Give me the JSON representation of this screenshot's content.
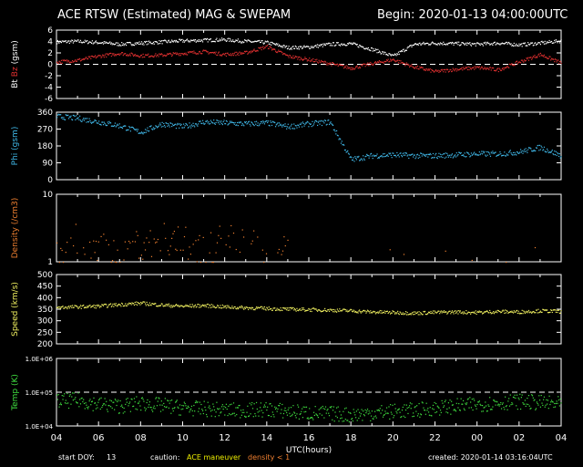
{
  "header": {
    "title": "ACE RTSW (Estimated) MAG & SWEPAM",
    "begin": "Begin: 2020-01-13 04:00:00UTC"
  },
  "footer": {
    "start_doy_label": "start DOY:",
    "start_doy": "13",
    "caution_label": "caution:",
    "caution_maneuver": "ACE maneuver",
    "caution_density": "density < 1",
    "created": "created: 2020-01-14 03:16:04UTC"
  },
  "colors": {
    "bt": "#ffffff",
    "bz": "#e03030",
    "phi": "#40b8e8",
    "density": "#f08030",
    "speed": "#f0f060",
    "temp": "#40e040",
    "maneuver": "#f0f000",
    "density_low": "#f08030",
    "axes": "#ffffff"
  },
  "chart_data": [
    {
      "type": "scatter",
      "panel": "mag",
      "ylabel_parts": [
        "Bt",
        "Bz",
        "(gsm)"
      ],
      "ylim": [
        -6,
        6
      ],
      "yticks": [
        -6,
        -4,
        -2,
        0,
        2,
        4,
        6
      ],
      "ytick_labels": [
        "-6",
        "-4",
        "-2",
        "0",
        "2",
        "4",
        "6"
      ],
      "dashed_ref": 0,
      "series": [
        {
          "name": "Bt",
          "x": [
            0,
            1,
            2,
            3,
            4,
            5,
            6,
            7,
            8,
            9,
            10,
            11,
            12,
            13,
            14,
            15,
            16,
            17,
            18,
            19,
            20,
            21,
            22,
            23,
            24
          ],
          "y": [
            4.0,
            4.1,
            3.9,
            3.6,
            3.8,
            4.0,
            4.2,
            4.3,
            4.4,
            4.1,
            3.9,
            3.0,
            3.1,
            3.6,
            3.7,
            2.7,
            1.5,
            3.6,
            3.8,
            3.7,
            3.6,
            3.8,
            3.5,
            3.8,
            4.2
          ]
        },
        {
          "name": "Bz",
          "x": [
            0,
            1,
            2,
            3,
            4,
            5,
            6,
            7,
            8,
            9,
            10,
            11,
            12,
            13,
            14,
            15,
            16,
            17,
            18,
            19,
            20,
            21,
            22,
            23,
            24
          ],
          "y": [
            0.5,
            0.8,
            1.5,
            2.0,
            1.6,
            1.7,
            2.0,
            2.3,
            1.8,
            2.1,
            3.2,
            1.5,
            0.9,
            0.2,
            -0.6,
            0.2,
            0.9,
            -0.4,
            -1.2,
            -0.8,
            -0.5,
            -0.9,
            0.5,
            1.8,
            0.3
          ]
        }
      ]
    },
    {
      "type": "scatter",
      "panel": "phi",
      "ylabel": "Phi (gsm)",
      "ylim": [
        0,
        360
      ],
      "yticks": [
        0,
        90,
        180,
        270,
        360
      ],
      "ytick_labels": [
        "0",
        "90",
        "180",
        "270",
        "360"
      ],
      "series": [
        {
          "name": "Phi",
          "x": [
            0,
            1,
            2,
            3,
            4,
            5,
            6,
            7,
            8,
            9,
            10,
            11,
            12,
            13,
            14,
            15,
            16,
            17,
            18,
            19,
            20,
            21,
            22,
            23,
            24
          ],
          "y": [
            340,
            330,
            310,
            290,
            255,
            300,
            285,
            310,
            305,
            300,
            305,
            285,
            300,
            310,
            110,
            130,
            135,
            130,
            130,
            135,
            140,
            140,
            150,
            175,
            130
          ]
        }
      ]
    },
    {
      "type": "scatter",
      "panel": "density",
      "ylabel": "Density (/cm3)",
      "yscale": "log",
      "ylim": [
        1,
        10
      ],
      "yticks": [
        1,
        10
      ],
      "ytick_labels": [
        "1",
        "10"
      ],
      "series": [
        {
          "name": "Density",
          "x": [
            0.5,
            1,
            1.5,
            2,
            3,
            4,
            4.5,
            5,
            6,
            7.5,
            8,
            9,
            9.5,
            10
          ],
          "y": [
            1.3,
            2.4,
            1.8,
            1.5,
            1.4,
            2.0,
            1.8,
            2.2,
            1.9,
            1.5,
            2.4,
            1.9,
            1.6,
            1.4
          ]
        }
      ]
    },
    {
      "type": "scatter",
      "panel": "speed",
      "ylabel": "Speed (km/s)",
      "ylim": [
        200,
        500
      ],
      "yticks": [
        200,
        250,
        300,
        350,
        400,
        450,
        500
      ],
      "ytick_labels": [
        "200",
        "250",
        "300",
        "350",
        "400",
        "450",
        "500"
      ],
      "series": [
        {
          "name": "Speed",
          "x": [
            0,
            1,
            2,
            3,
            4,
            5,
            6,
            7,
            8,
            9,
            10,
            11,
            12,
            13,
            14,
            15,
            16,
            17,
            18,
            19,
            20,
            21,
            22,
            23,
            24
          ],
          "y": [
            360,
            362,
            365,
            372,
            378,
            370,
            365,
            368,
            362,
            358,
            355,
            352,
            350,
            348,
            345,
            340,
            338,
            335,
            338,
            340,
            338,
            342,
            340,
            345,
            342
          ]
        }
      ]
    },
    {
      "type": "scatter",
      "panel": "temp",
      "ylabel": "Temp (K)",
      "yscale": "log",
      "ylim": [
        10000,
        1000000
      ],
      "yticks": [
        10000,
        100000,
        1000000
      ],
      "ytick_labels": [
        "1.0E+04",
        "1.0E+05",
        "1.0E+06"
      ],
      "dashed_ref": 100000,
      "series": [
        {
          "name": "Temp",
          "x": [
            0,
            1,
            2,
            3,
            4,
            5,
            6,
            7,
            8,
            9,
            10,
            11,
            12,
            13,
            14,
            15,
            16,
            17,
            18,
            19,
            20,
            21,
            22,
            23,
            24
          ],
          "y": [
            55000,
            60000,
            45000,
            40000,
            48000,
            42000,
            35000,
            33000,
            30000,
            30000,
            32000,
            28000,
            25000,
            24000,
            22000,
            25000,
            28000,
            30000,
            35000,
            40000,
            45000,
            50000,
            55000,
            50000,
            45000
          ]
        }
      ]
    }
  ],
  "x_axis": {
    "label": "UTC(hours)",
    "range_hours": [
      0,
      24
    ],
    "tick_labels": [
      "04",
      "06",
      "08",
      "10",
      "12",
      "14",
      "16",
      "18",
      "20",
      "22",
      "00",
      "02",
      "04"
    ]
  }
}
